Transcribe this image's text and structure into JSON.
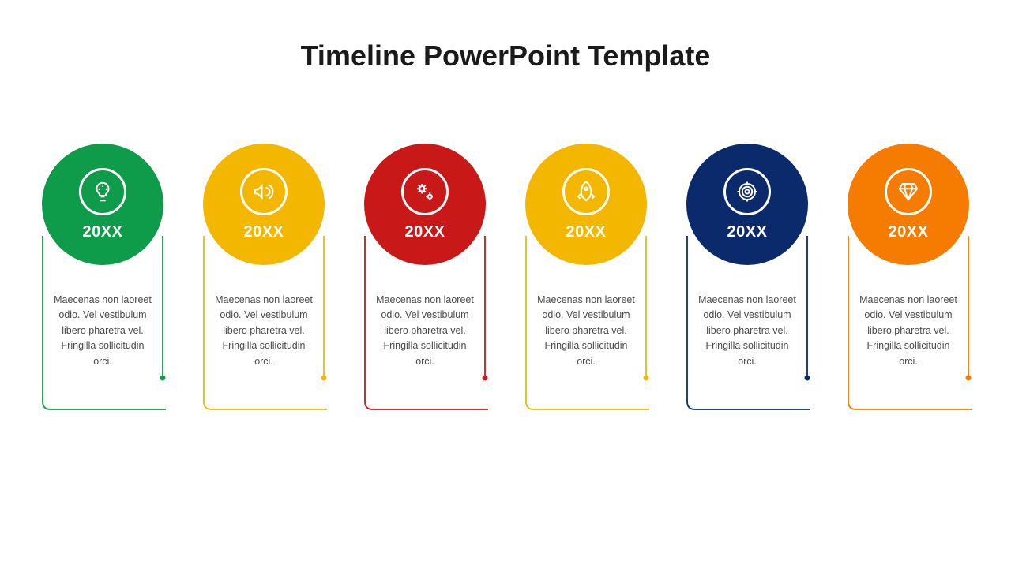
{
  "title": "Timeline PowerPoint Template",
  "type": "infographic-timeline",
  "background_color": "#ffffff",
  "title_fontsize": 36,
  "title_color": "#1a1a1a",
  "desc_fontsize": 12.5,
  "desc_color": "#4a4a4a",
  "circle_diameter": 154,
  "icon_ring_diameter": 60,
  "item_gap": 44,
  "items": [
    {
      "year": "20XX",
      "color": "#0e9b4a",
      "icon": "bulb-icon",
      "desc": "Maecenas non laoreet odio. Vel vestibulum libero pharetra vel. Fringilla sollicitudin orci."
    },
    {
      "year": "20XX",
      "color": "#f3b700",
      "icon": "megaphone-icon",
      "desc": "Maecenas non laoreet odio. Vel vestibulum libero pharetra vel. Fringilla sollicitudin orci."
    },
    {
      "year": "20XX",
      "color": "#c81818",
      "icon": "gears-icon",
      "desc": "Maecenas non laoreet odio. Vel vestibulum libero pharetra vel. Fringilla sollicitudin orci."
    },
    {
      "year": "20XX",
      "color": "#f3b700",
      "icon": "rocket-icon",
      "desc": "Maecenas non laoreet odio. Vel vestibulum libero pharetra vel. Fringilla sollicitudin orci."
    },
    {
      "year": "20XX",
      "color": "#0b2a6b",
      "icon": "target-icon",
      "desc": "Maecenas non laoreet odio. Vel vestibulum libero pharetra vel. Fringilla sollicitudin orci."
    },
    {
      "year": "20XX",
      "color": "#f57c00",
      "icon": "diamond-icon",
      "desc": "Maecenas non laoreet odio. Vel vestibulum libero pharetra vel. Fringilla sollicitudin orci."
    }
  ]
}
